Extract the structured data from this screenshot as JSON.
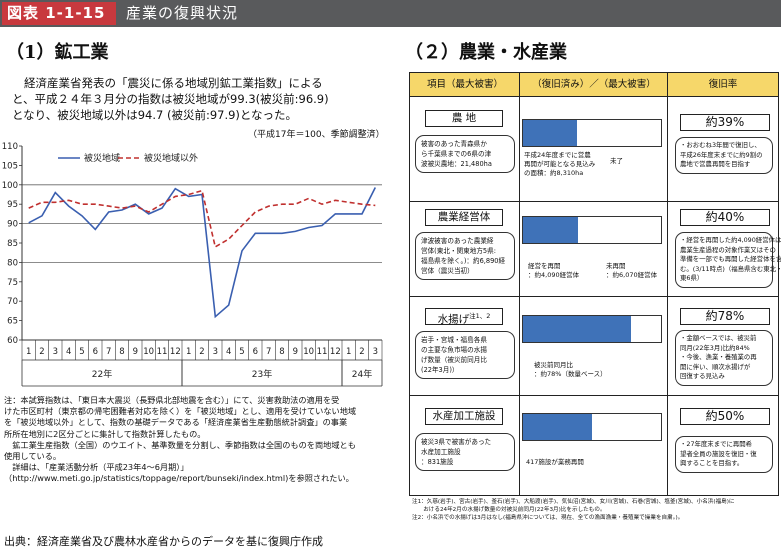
{
  "header": {
    "tag": "図表 1-1-15",
    "title": "産業の復興状況"
  },
  "left": {
    "section_title": "（1）鉱工業",
    "lead_lines": [
      "経済産業省発表の「震災に係る地域別鉱工業指数」による",
      "と、平成２４年３月分の指数は被災地域が99.3(被災前:96.9)",
      "となり、被災地域以外は94.7 (被災前:97.9)となった。"
    ],
    "unit_note": "（平成17年＝100、季節調整済）",
    "notes": [
      "注：本試算指数は、「東日本大震災（長野県北部地震を含む）」にて、災害救助法の適用を受",
      "けた市区町村（東京都の帰宅困難者対応を除く）を「被災地域」とし、適用を受けていない地域",
      "を「被災地域以外」として、指数の基礎データである「経済産業省生産動態統計調査」の事業",
      "所所在地別に2区分ごとに集計して指数計算したもの。",
      "　鉱工業生産指数（全国）のウエイト、基準数量を分割し、季節指数は全国のものを両地域とも",
      "使用している。",
      "　詳細は、「産業活動分析（平成23年4〜6月期）」",
      "（http://www.meti.go.jp/statistics/toppage/report/bunseki/index.html)を参照されたい。"
    ],
    "source": "出典：経済産業省及び農林水産省からのデータを基に復興庁作成"
  },
  "chart_data": {
    "type": "line",
    "title": "",
    "xlabel": "",
    "ylabel": "",
    "ylim": [
      60,
      110
    ],
    "yticks": [
      60,
      65,
      70,
      75,
      80,
      85,
      90,
      95,
      100,
      105,
      110
    ],
    "grid_y": [
      80,
      90,
      100
    ],
    "legend_position": "top-left",
    "categories": [
      "1",
      "2",
      "3",
      "4",
      "5",
      "6",
      "7",
      "8",
      "9",
      "10",
      "11",
      "12",
      "1",
      "2",
      "3",
      "4",
      "5",
      "6",
      "7",
      "8",
      "9",
      "10",
      "11",
      "12",
      "1",
      "2",
      "3"
    ],
    "year_labels": [
      {
        "label": "22年",
        "start": 0,
        "end": 11
      },
      {
        "label": "23年",
        "start": 12,
        "end": 23
      },
      {
        "label": "24年",
        "start": 24,
        "end": 26
      }
    ],
    "series": [
      {
        "name": "被災地域",
        "style": "solid",
        "color": "#3a5fb0",
        "values": [
          90.2,
          92.0,
          98.0,
          94.5,
          92.0,
          88.5,
          93.0,
          93.5,
          95.0,
          92.5,
          94.0,
          99.0,
          97.0,
          97.5,
          66.0,
          69.0,
          83.0,
          87.5,
          87.5,
          87.5,
          88.0,
          89.0,
          89.5,
          92.5,
          92.5,
          92.5,
          99.3
        ]
      },
      {
        "name": "被災地域以外",
        "style": "dashed",
        "color": "#c0302f",
        "values": [
          94.0,
          95.5,
          95.5,
          96.0,
          95.0,
          95.0,
          94.5,
          94.0,
          94.5,
          93.0,
          95.0,
          97.0,
          97.5,
          98.5,
          84.0,
          86.0,
          89.5,
          93.0,
          94.5,
          95.0,
          95.0,
          96.5,
          95.0,
          96.0,
          95.5,
          95.0,
          94.7
        ]
      }
    ]
  },
  "right": {
    "section_title": "（２）農業・水産業",
    "headers": [
      "項目（最大被害）",
      "（復旧済み）／（最大被害）",
      "復旧率"
    ],
    "bar_fill_color": "#3f72b8",
    "rows": [
      {
        "name": "農 地",
        "sup": "",
        "desc_lines": [
          "被害のあった青森県か",
          "ら千葉県までの6県の津",
          "波被災農地：21,480ha"
        ],
        "bar_fraction": 0.39,
        "bar_left_label": [
          "平成24年度までに営農",
          "再開が可能となる見込み",
          "の面積：約8,310ha"
        ],
        "bar_right_label": [
          "未了"
        ],
        "rate": "約39%",
        "rate_lines": [
          "・おおむね3年間で復旧し、",
          "平成26年度末までに約9割の",
          "農地で営農再開を目指す"
        ]
      },
      {
        "name": "農業経営体",
        "sup": "",
        "desc_lines": [
          "津波被害のあった農業経",
          "営体(東北・関東地方5県:",
          "福島県を除く。)：約6,890経",
          "営体（震災当初）"
        ],
        "bar_fraction": 0.4,
        "bar_left_label": [
          "経営を再開",
          "：約4,090経営体"
        ],
        "bar_right_label": [
          "未再開",
          "：約6,070経営体"
        ],
        "rate": "約40%",
        "rate_lines": [
          "・経営を再開した約4,090経営体は、",
          "農業生産過程の対象作業又はその",
          "準備を一部でも再開した経営体を含",
          "む。(3/11時点)（福島県含む東北・関",
          "東6県）"
        ]
      },
      {
        "name": "水揚げ",
        "sup": "注1、2",
        "desc_lines": [
          "岩手・宮城・福島各県",
          "の主要な魚市場の水揚",
          "げ数量（被災前同月比",
          "(22年3月)）"
        ],
        "bar_fraction": 0.78,
        "bar_left_label": [
          "被災前同月比",
          "：約78%（数量ベース）"
        ],
        "bar_right_label": [],
        "rate": "約78%",
        "rate_lines": [
          "・金額ベースでは、被災前",
          "同月(22年3月)比約84%",
          "・今後、漁業・養殖業の再",
          "開に伴い、順次水揚げが",
          "回復する見込み"
        ]
      },
      {
        "name": "水産加工施設",
        "sup": "",
        "desc_lines": [
          "被災3県で被害があった",
          "水産加工施設",
          "：831施設"
        ],
        "bar_fraction": 0.5,
        "bar_left_label": [
          "417施設が業務再開"
        ],
        "bar_right_label": [],
        "rate": "約50%",
        "rate_lines": [
          "・27年度末までに再開希",
          "望者全員の施設を復旧・復",
          "興することを目指す。"
        ]
      }
    ],
    "notes": [
      "注1：久慈(岩手)、宮古(岩手)、釜石(岩手)、大船渡(岩手)、気仙沼(宮城)、女川(宮城)、石巻(宮城)、塩釜(宮城)、小名浜(福島)に",
      "　　おける24年2月の水揚げ数量の対被災前同月(22年3月)比を示したもの。",
      "注2：小名浜での水揚げは3月はなし(福島県沖については、現在、全ての漁面漁業・養殖業で操業を自粛。)。"
    ]
  }
}
